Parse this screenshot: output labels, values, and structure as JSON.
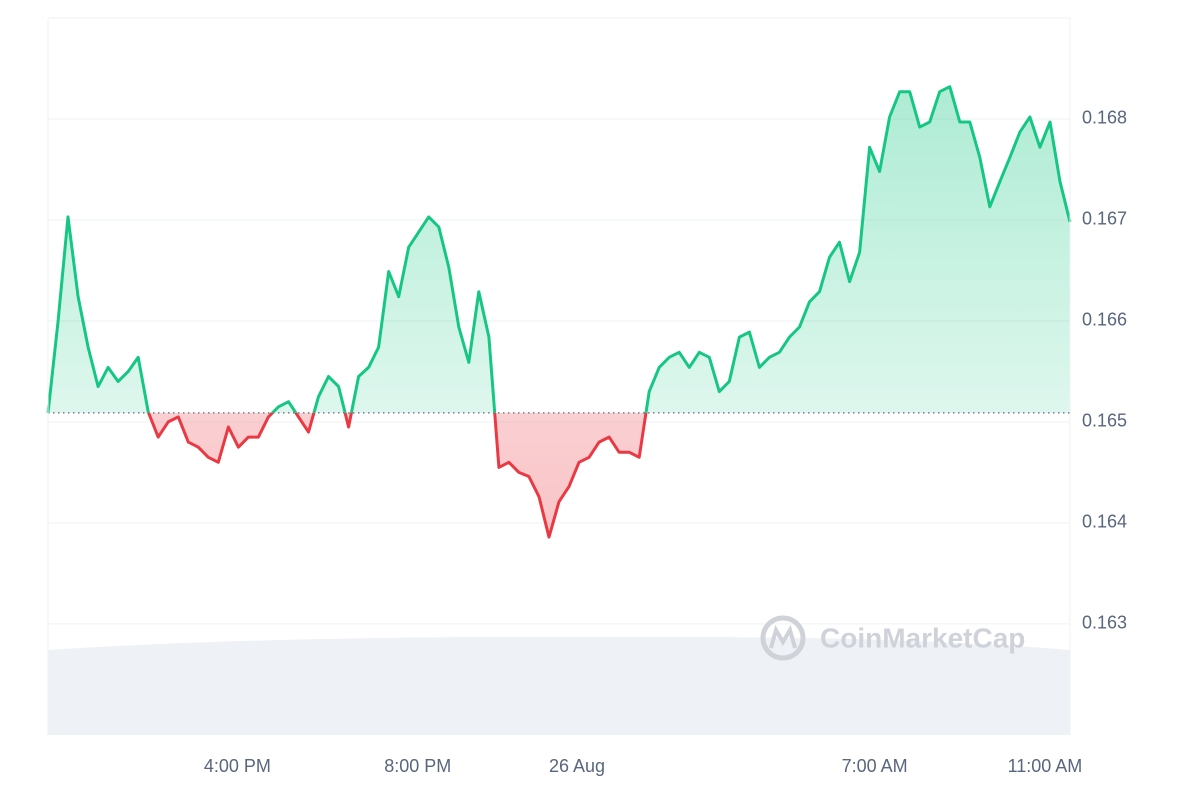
{
  "chart_data": {
    "type": "line",
    "watermark": "CoinMarketCap",
    "baseline": 0.16509,
    "up_color": "#16c784",
    "down_color": "#ea3943",
    "xlim": [
      0,
      102
    ],
    "xticks": [
      {
        "value": 18.9,
        "label": "4:00 PM"
      },
      {
        "value": 36.9,
        "label": "8:00 PM"
      },
      {
        "value": 52.8,
        "label": "26 Aug"
      },
      {
        "value": 82.5,
        "label": "7:00 AM"
      },
      {
        "value": 99.5,
        "label": "11:00 AM"
      }
    ],
    "ylim": [
      0.1619,
      0.169
    ],
    "yticks": [
      0.163,
      0.164,
      0.165,
      0.166,
      0.167,
      0.168
    ],
    "grid": true,
    "series": [
      {
        "values": [
          0.16509,
          0.16599,
          0.16703,
          0.16624,
          0.16574,
          0.16535,
          0.16554,
          0.1654,
          0.1655,
          0.16564,
          0.1651,
          0.16485,
          0.165,
          0.16505,
          0.1648,
          0.16475,
          0.16465,
          0.1646,
          0.16495,
          0.16475,
          0.16485,
          0.16485,
          0.16505,
          0.16515,
          0.1652,
          0.16505,
          0.1649,
          0.16525,
          0.16545,
          0.16535,
          0.16495,
          0.16545,
          0.16554,
          0.16574,
          0.16649,
          0.16624,
          0.16673,
          0.16688,
          0.16703,
          0.16693,
          0.16653,
          0.16594,
          0.16559,
          0.16629,
          0.16584,
          0.16455,
          0.1646,
          0.1645,
          0.16446,
          0.16426,
          0.16386,
          0.16421,
          0.16436,
          0.1646,
          0.16465,
          0.1648,
          0.16485,
          0.1647,
          0.1647,
          0.16465,
          0.1653,
          0.16554,
          0.16564,
          0.16569,
          0.16554,
          0.16569,
          0.16564,
          0.1653,
          0.1654,
          0.16584,
          0.16589,
          0.16554,
          0.16564,
          0.16569,
          0.16584,
          0.16594,
          0.16619,
          0.16629,
          0.16663,
          0.16678,
          0.16639,
          0.16668,
          0.16772,
          0.16748,
          0.16802,
          0.16827,
          0.16827,
          0.16792,
          0.16797,
          0.16827,
          0.16832,
          0.16797,
          0.16797,
          0.16762,
          0.16713,
          0.16738,
          0.16762,
          0.16787,
          0.16802,
          0.16772,
          0.16797,
          0.16738,
          0.16698
        ]
      }
    ]
  }
}
